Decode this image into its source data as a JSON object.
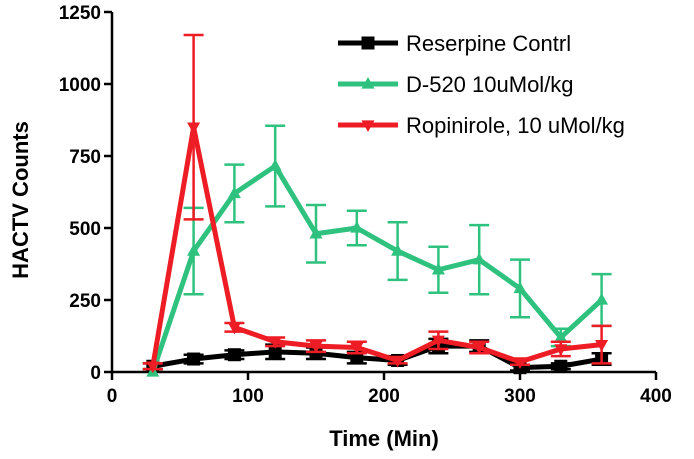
{
  "chart_data": {
    "type": "line",
    "title": "",
    "xlabel": "Time (Min)",
    "ylabel": "HACTV Counts",
    "xlim": [
      0,
      400
    ],
    "ylim": [
      0,
      1250
    ],
    "xticks": [
      0,
      100,
      200,
      300,
      400
    ],
    "yticks": [
      0,
      250,
      500,
      750,
      1000,
      1250
    ],
    "grid": false,
    "legend_position": "top-right",
    "x": [
      30,
      60,
      90,
      120,
      150,
      180,
      210,
      240,
      270,
      300,
      330,
      360
    ],
    "series": [
      {
        "name": "Reserpine Contrl",
        "color": "#000000",
        "marker": "square",
        "values": [
          20,
          45,
          60,
          70,
          65,
          50,
          40,
          90,
          90,
          15,
          20,
          45
        ],
        "error": [
          10,
          15,
          15,
          25,
          20,
          20,
          15,
          25,
          20,
          10,
          10,
          20
        ]
      },
      {
        "name": "D-520 10uMol/kg",
        "color": "#2ec27e",
        "marker": "triangle-up",
        "values": [
          0,
          420,
          620,
          715,
          480,
          500,
          420,
          355,
          390,
          290,
          120,
          250
        ],
        "error": [
          0,
          150,
          100,
          140,
          100,
          60,
          100,
          80,
          120,
          100,
          30,
          90
        ]
      },
      {
        "name": "Ropinirole, 10 uMol/kg",
        "color": "#ee1c24",
        "marker": "triangle-down",
        "values": [
          20,
          850,
          155,
          105,
          90,
          85,
          40,
          110,
          85,
          35,
          80,
          95
        ],
        "error": [
          10,
          320,
          15,
          15,
          20,
          20,
          10,
          30,
          20,
          10,
          25,
          65
        ]
      }
    ]
  }
}
